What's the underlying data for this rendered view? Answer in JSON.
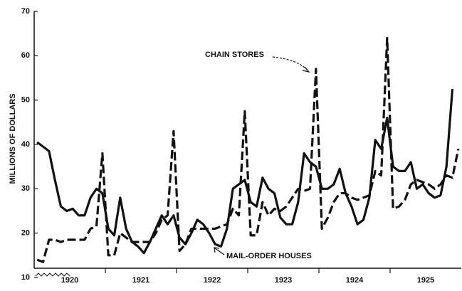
{
  "chart_data": {
    "type": "line",
    "y_label": "MILLIONS OF DOLLARS",
    "categories": [
      null,
      null,
      null,
      null,
      null,
      "1920",
      null,
      null,
      null,
      null,
      null,
      null,
      null,
      null,
      null,
      null,
      null,
      "1921",
      null,
      null,
      null,
      null,
      null,
      null,
      null,
      null,
      null,
      null,
      null,
      "1922",
      null,
      null,
      null,
      null,
      null,
      null,
      null,
      null,
      null,
      null,
      null,
      "1923",
      null,
      null,
      null,
      null,
      null,
      null,
      null,
      null,
      null,
      null,
      null,
      "1924",
      null,
      null,
      null,
      null,
      null,
      null,
      null,
      null,
      null,
      null,
      null,
      "1925",
      null,
      null,
      null,
      null,
      null,
      null
    ],
    "series": [
      {
        "name": "MAIL-ORDER HOUSES",
        "color": "#111",
        "dash": false,
        "values": [
          40.5,
          39.5,
          38.5,
          32,
          26,
          25,
          25.5,
          24,
          24,
          28,
          30,
          29,
          21,
          19.5,
          28,
          21,
          18,
          17,
          15.5,
          18,
          21,
          24,
          22,
          24,
          19,
          17.5,
          20,
          23,
          22,
          20,
          17.5,
          17,
          21,
          30,
          31,
          32,
          27,
          26,
          32.5,
          30,
          29,
          23.5,
          22,
          22,
          27,
          38,
          36,
          35,
          30,
          30,
          31,
          34.5,
          29,
          26,
          22,
          23,
          28,
          41,
          39,
          46,
          35,
          34,
          34,
          36,
          30,
          31,
          29,
          28,
          28.5,
          35,
          52.5,
          null
        ]
      },
      {
        "name": "CHAIN STORES",
        "color": "#111",
        "dash": true,
        "values": [
          14,
          13.5,
          18.5,
          18.5,
          18,
          18.5,
          18.5,
          18.5,
          18.5,
          21,
          21.5,
          38,
          15,
          15,
          20,
          19,
          18,
          18,
          18,
          18,
          20,
          23,
          24,
          43,
          16,
          17.5,
          21,
          21,
          21,
          21,
          21,
          21.5,
          22,
          25.5,
          24,
          47.5,
          19.5,
          19.5,
          27,
          24,
          25.5,
          25,
          26,
          28,
          30,
          29.5,
          30,
          57,
          21,
          23.5,
          27,
          29,
          29,
          28,
          27.5,
          28,
          28.5,
          34,
          33,
          64,
          25.5,
          26,
          27.5,
          31,
          32,
          31.5,
          31,
          30,
          31,
          33,
          32.5,
          39
        ]
      }
    ],
    "ylim": [
      10,
      70
    ],
    "yticks": [
      10,
      20,
      30,
      40,
      50,
      60,
      70
    ]
  }
}
